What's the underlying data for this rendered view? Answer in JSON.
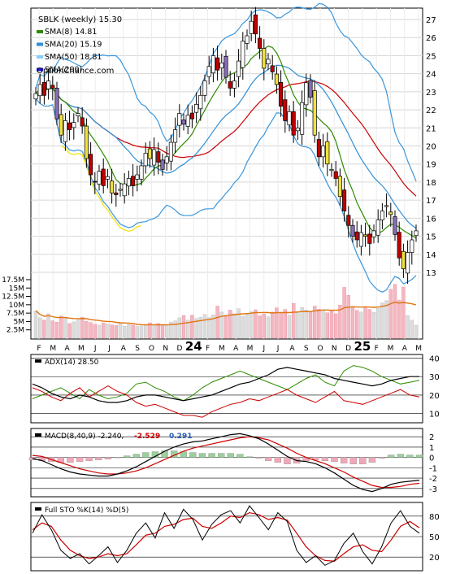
{
  "chart_data": {
    "type": "candlestick",
    "title": "SBLK (weekly) 15.30",
    "watermark": "OptionChance.com",
    "price_axis": {
      "ylim": [
        12,
        27.5
      ],
      "ticks": [
        13,
        14,
        15,
        16,
        17,
        18,
        19,
        20,
        21,
        22,
        23,
        24,
        25,
        26,
        27
      ]
    },
    "legend": [
      {
        "name": "SMA(8) 14.81",
        "color": "#2e8b00"
      },
      {
        "name": "SMA(20) 15.19",
        "color": "#2f8fd6"
      },
      {
        "name": "SMA(50) 18.81",
        "color": "#87cefa"
      },
      {
        "name": "SMA(200)",
        "color": "#1f1fd0"
      }
    ],
    "overlays": [
      {
        "name": "Bollinger (upper/lower)",
        "color": "#3a96dc"
      },
      {
        "name": "Long SMA",
        "color": "#cc0000"
      },
      {
        "name": "Parabolic line",
        "color": "#f2e100"
      }
    ],
    "closes": [
      22.9,
      23.4,
      22.8,
      23.6,
      23.2,
      21.5,
      20.6,
      21.4,
      20.9,
      21.3,
      21.8,
      21.1,
      19.3,
      18.4,
      18.0,
      18.6,
      17.8,
      18.3,
      17.4,
      17.3,
      17.6,
      17.9,
      18.2,
      17.8,
      18.4,
      18.9,
      19.6,
      19.3,
      19.8,
      19.1,
      18.7,
      19.4,
      20.2,
      20.9,
      21.8,
      21.2,
      21.7,
      21.5,
      22.3,
      22.8,
      23.6,
      24.4,
      25.0,
      24.2,
      24.6,
      23.8,
      23.2,
      23.6,
      24.7,
      25.8,
      26.1,
      26.9,
      26.2,
      25.4,
      24.3,
      24.8,
      24.1,
      23.4,
      22.2,
      21.4,
      21.9,
      20.6,
      21.0,
      22.4,
      23.5,
      22.7,
      20.6,
      19.4,
      20.0,
      19.0,
      18.7,
      18.2,
      17.2,
      16.4,
      15.6,
      15.0,
      14.8,
      15.2,
      15.0,
      14.6,
      15.3,
      15.9,
      16.4,
      16.7,
      16.2,
      15.1,
      13.8,
      13.2,
      14.1,
      14.8,
      15.3
    ],
    "volume_axis": {
      "ylim": [
        0,
        18000000
      ],
      "ticks": [
        "2.5M",
        "5M",
        "7.5M",
        "10M",
        "12.5M",
        "15M",
        "17.5M"
      ]
    },
    "volume_values": [
      8.2,
      6.1,
      5.4,
      7.3,
      5.2,
      4.8,
      6.6,
      5.9,
      4.4,
      4.9,
      5.5,
      6.3,
      5.1,
      4.7,
      4.2,
      3.9,
      4.6,
      4.3,
      4.0,
      3.8,
      4.4,
      3.6,
      4.1,
      3.9,
      3.5,
      3.7,
      4.0,
      4.6,
      3.9,
      4.4,
      4.1,
      3.7,
      4.8,
      5.2,
      6.1,
      6.8,
      5.4,
      6.9,
      5.9,
      6.3,
      7.1,
      6.2,
      7.0,
      9.6,
      7.8,
      6.9,
      8.4,
      7.3,
      8.8,
      6.6,
      7.5,
      7.9,
      8.5,
      6.7,
      7.2,
      6.4,
      7.8,
      9.1,
      7.4,
      8.6,
      6.9,
      10.4,
      7.6,
      9.2,
      8.4,
      7.9,
      9.6,
      8.7,
      8.1,
      7.6,
      8.2,
      7.3,
      9.9,
      15.2,
      12.8,
      9.4,
      8.3,
      7.8,
      9.1,
      8.6,
      7.7,
      8.9,
      10.6,
      11.2,
      14.6,
      16.1,
      11.4,
      15.3,
      6.8,
      5.4,
      3.9
    ],
    "x_ticks": [
      "F",
      "M",
      "A",
      "M",
      "J",
      "J",
      "A",
      "S",
      "O",
      "N",
      "D",
      "24",
      "F",
      "M",
      "A",
      "M",
      "J",
      "J",
      "A",
      "S",
      "O",
      "N",
      "D",
      "25",
      "F",
      "M",
      "A",
      "M"
    ],
    "adx": {
      "label": "ADX(14) 28.50",
      "ylim": [
        5,
        42
      ],
      "ticks": [
        10,
        20,
        30,
        40
      ],
      "adx": [
        26,
        24,
        21,
        19,
        18,
        20,
        19,
        17,
        16,
        16,
        17,
        19,
        20,
        20,
        19,
        18,
        17,
        18,
        19,
        20,
        22,
        24,
        26,
        27,
        29,
        31,
        34,
        35,
        34,
        33,
        32,
        31,
        29,
        28,
        27,
        26,
        25,
        26,
        28,
        29,
        30,
        30
      ],
      "plus_di": [
        18,
        20,
        22,
        24,
        21,
        18,
        23,
        20,
        18,
        19,
        21,
        26,
        27,
        24,
        22,
        19,
        17,
        20,
        24,
        27,
        29,
        31,
        33,
        31,
        29,
        27,
        25,
        23,
        26,
        29,
        31,
        27,
        25,
        33,
        36,
        35,
        33,
        30,
        28,
        26,
        27,
        28
      ],
      "minus_di": [
        24,
        22,
        19,
        17,
        21,
        24,
        19,
        22,
        25,
        22,
        20,
        16,
        14,
        15,
        13,
        11,
        9,
        9,
        8,
        11,
        13,
        15,
        16,
        18,
        17,
        19,
        21,
        23,
        20,
        18,
        16,
        19,
        22,
        17,
        16,
        15,
        17,
        19,
        21,
        23,
        20,
        19
      ]
    },
    "macd": {
      "label": "MACD(8,40,9) -2.240,",
      "macd_value": "-2.529",
      "signal_value": "0.291",
      "ylim": [
        -3.8,
        2.8
      ],
      "ticks": [
        2,
        1,
        0,
        -1,
        -2,
        -3
      ],
      "macd_line": [
        -0.1,
        -0.3,
        -0.7,
        -1.1,
        -1.4,
        -1.6,
        -1.7,
        -1.8,
        -1.8,
        -1.6,
        -1.3,
        -0.9,
        -0.4,
        0.1,
        0.6,
        1.0,
        1.3,
        1.5,
        1.6,
        1.8,
        2.0,
        2.2,
        2.3,
        2.1,
        1.8,
        1.3,
        0.7,
        0.1,
        -0.3,
        -0.4,
        -0.6,
        -1.0,
        -1.5,
        -2.1,
        -2.7,
        -3.1,
        -3.3,
        -3.0,
        -2.6,
        -2.4,
        -2.3,
        -2.2
      ],
      "signal_line": [
        0.2,
        0.1,
        -0.2,
        -0.5,
        -0.8,
        -1.1,
        -1.3,
        -1.5,
        -1.6,
        -1.6,
        -1.5,
        -1.3,
        -1.0,
        -0.6,
        -0.2,
        0.2,
        0.6,
        0.9,
        1.1,
        1.3,
        1.5,
        1.7,
        1.9,
        2.0,
        1.9,
        1.7,
        1.3,
        0.9,
        0.4,
        0.0,
        -0.3,
        -0.6,
        -1.0,
        -1.4,
        -1.9,
        -2.3,
        -2.7,
        -2.9,
        -2.9,
        -2.8,
        -2.6,
        -2.5
      ]
    },
    "stochastic": {
      "label": "Full STO %K(14) %D(5)",
      "ylim": [
        0,
        100
      ],
      "ticks": [
        20,
        50,
        80
      ],
      "k": [
        55,
        82,
        60,
        30,
        18,
        25,
        10,
        22,
        35,
        12,
        30,
        55,
        70,
        48,
        85,
        62,
        90,
        75,
        45,
        68,
        82,
        88,
        70,
        95,
        78,
        60,
        85,
        72,
        30,
        12,
        22,
        8,
        15,
        40,
        55,
        28,
        10,
        35,
        70,
        88,
        65,
        55
      ],
      "d": [
        60,
        70,
        65,
        45,
        30,
        22,
        18,
        20,
        25,
        22,
        25,
        38,
        52,
        55,
        65,
        68,
        75,
        77,
        65,
        62,
        70,
        80,
        78,
        85,
        82,
        75,
        78,
        74,
        55,
        35,
        22,
        15,
        14,
        25,
        35,
        38,
        30,
        28,
        45,
        65,
        72,
        63
      ]
    }
  }
}
